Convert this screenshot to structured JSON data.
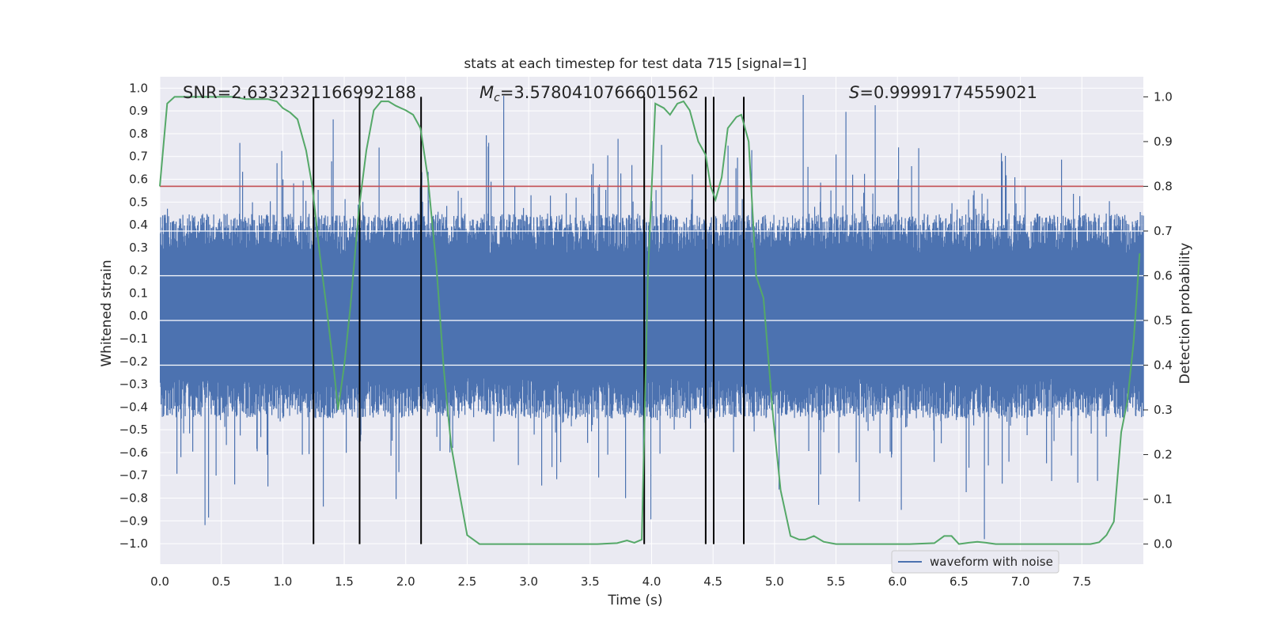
{
  "chart_data": {
    "type": "line",
    "title": "stats at each timestep for test data 715 [signal=1]",
    "xlabel": "Time (s)",
    "ylabel_left": "Whitened strain",
    "ylabel_right": "Detection probability",
    "xlim": [
      0.0,
      8.0
    ],
    "ylim_left": [
      -1.09,
      1.05
    ],
    "ylim_right": [
      -0.045,
      1.045
    ],
    "x_ticks": [
      "0.0",
      "0.5",
      "1.0",
      "1.5",
      "2.0",
      "2.5",
      "3.0",
      "3.5",
      "4.0",
      "4.5",
      "5.0",
      "5.5",
      "6.0",
      "6.5",
      "7.0",
      "7.5"
    ],
    "y_left_ticks": [
      "1.0",
      "0.9",
      "0.8",
      "0.7",
      "0.6",
      "0.5",
      "0.4",
      "0.3",
      "0.2",
      "0.1",
      "0.0",
      "-0.1",
      "-0.2",
      "-0.3",
      "-0.4",
      "-0.5",
      "-0.6",
      "-0.7",
      "-0.8",
      "-0.9",
      "-1.0"
    ],
    "y_right_ticks": [
      "1.0",
      "0.9",
      "0.8",
      "0.7",
      "0.6",
      "0.5",
      "0.4",
      "0.3",
      "0.2",
      "0.1",
      "0.0"
    ],
    "grid": true,
    "annotations": {
      "snr": "SNR=2.6332321166992188",
      "mc_symbol": "M",
      "mc_sub": "c",
      "mc_value": "=3.5780410766601562",
      "s_symbol": "S",
      "s_value": "=0.99991774559021"
    },
    "threshold_line": {
      "axis": "right",
      "y": 0.8,
      "color": "#c44e52"
    },
    "vertical_lines": {
      "x": [
        1.25,
        1.625,
        2.125,
        3.94,
        4.44,
        4.505,
        4.75
      ],
      "y_range_right": [
        0.0,
        1.0
      ],
      "color": "#000000"
    },
    "series": [
      {
        "name": "waveform with noise",
        "axis": "left",
        "color": "#4c72b0",
        "style": "noise",
        "sample_rate_hz": 2048,
        "envelope": {
          "typical_max": 0.45,
          "typical_min": -0.45,
          "peak_max": 0.97,
          "peak_min": -1.0
        }
      },
      {
        "axis": "right",
        "color": "#55a868",
        "x": [
          0.0,
          0.06,
          0.12,
          0.2,
          0.3,
          0.4,
          0.5,
          0.6,
          0.7,
          0.8,
          0.88,
          0.95,
          1.0,
          1.06,
          1.12,
          1.19,
          1.24,
          1.3,
          1.36,
          1.42,
          1.45,
          1.5,
          1.55,
          1.62,
          1.68,
          1.74,
          1.8,
          1.86,
          1.92,
          2.0,
          2.06,
          2.12,
          2.18,
          2.25,
          2.31,
          2.37,
          2.44,
          2.5,
          2.6,
          2.8,
          3.0,
          3.2,
          3.4,
          3.56,
          3.72,
          3.8,
          3.86,
          3.92,
          3.97,
          4.03,
          4.1,
          4.15,
          4.21,
          4.26,
          4.31,
          4.38,
          4.44,
          4.48,
          4.52,
          4.57,
          4.62,
          4.69,
          4.73,
          4.79,
          4.85,
          4.91,
          4.99,
          5.05,
          5.13,
          5.2,
          5.25,
          5.32,
          5.4,
          5.5,
          5.7,
          5.9,
          6.1,
          6.3,
          6.38,
          6.44,
          6.5,
          6.58,
          6.65,
          6.72,
          6.8,
          7.0,
          7.2,
          7.4,
          7.5,
          7.57,
          7.64,
          7.7,
          7.76,
          7.82,
          7.87,
          7.92,
          7.97
        ],
        "y": [
          0.8,
          0.985,
          1.0,
          1.0,
          1.0,
          1.0,
          1.0,
          1.0,
          0.995,
          0.995,
          0.995,
          0.99,
          0.975,
          0.965,
          0.95,
          0.88,
          0.8,
          0.65,
          0.52,
          0.38,
          0.3,
          0.4,
          0.53,
          0.75,
          0.88,
          0.97,
          0.99,
          0.99,
          0.98,
          0.97,
          0.96,
          0.93,
          0.82,
          0.62,
          0.39,
          0.22,
          0.11,
          0.02,
          0.0,
          0.0,
          0.0,
          0.0,
          0.0,
          0.0,
          0.002,
          0.008,
          0.003,
          0.01,
          0.6,
          0.985,
          0.975,
          0.96,
          0.985,
          0.99,
          0.97,
          0.9,
          0.87,
          0.8,
          0.77,
          0.82,
          0.93,
          0.955,
          0.96,
          0.9,
          0.6,
          0.55,
          0.28,
          0.12,
          0.018,
          0.01,
          0.01,
          0.018,
          0.005,
          0.0,
          0.0,
          0.0,
          0.0,
          0.002,
          0.018,
          0.018,
          0.0,
          0.003,
          0.005,
          0.003,
          0.0,
          0.0,
          0.0,
          0.0,
          0.0,
          0.0,
          0.004,
          0.02,
          0.05,
          0.25,
          0.32,
          0.45,
          0.65
        ]
      }
    ],
    "legend": {
      "placement": "lower-right",
      "entries": [
        "waveform with noise"
      ]
    }
  }
}
